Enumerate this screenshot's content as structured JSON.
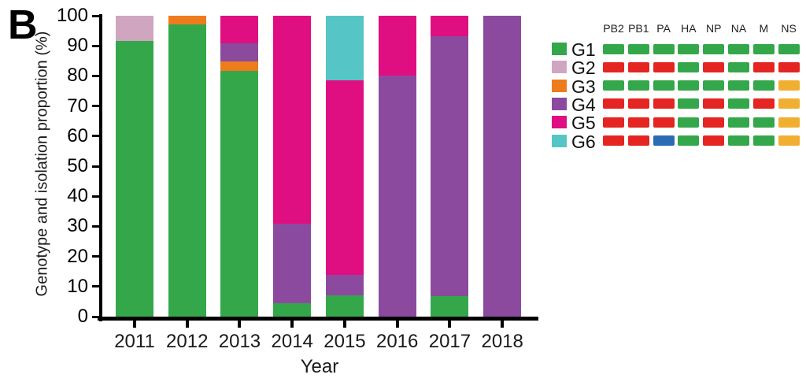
{
  "panel_label": "B",
  "colors": {
    "g1": "#34a74b",
    "g2": "#d0a5bf",
    "g3": "#ee7c1d",
    "g4": "#8b4a9e",
    "g5": "#df0e81",
    "g6": "#56c5c6",
    "gene_green": "#34a74b",
    "gene_red": "#e42521",
    "gene_blue": "#2a6cb3",
    "gene_amber": "#f1af32",
    "axis": "#000000"
  },
  "chart_data": {
    "type": "bar",
    "stacked": true,
    "title": "",
    "xlabel": "Year",
    "ylabel": "Genotype and isolation proportion (%)",
    "ylim": [
      0,
      100
    ],
    "yticks": [
      0,
      10,
      20,
      30,
      40,
      50,
      60,
      70,
      80,
      90,
      100
    ],
    "grid": false,
    "legend_position": "right",
    "categories": [
      "2011",
      "2012",
      "2013",
      "2014",
      "2015",
      "2016",
      "2017",
      "2018"
    ],
    "series": [
      {
        "name": "G1",
        "color": "#34a74b",
        "values": [
          91.7,
          97.0,
          81.8,
          4.5,
          7.0,
          0,
          6.7,
          0
        ]
      },
      {
        "name": "G2",
        "color": "#d0a5bf",
        "values": [
          8.3,
          0,
          0,
          0,
          0,
          0,
          0,
          0
        ]
      },
      {
        "name": "G3",
        "color": "#ee7c1d",
        "values": [
          0,
          3.0,
          3.0,
          0,
          0,
          0,
          0,
          0
        ]
      },
      {
        "name": "G4",
        "color": "#8b4a9e",
        "values": [
          0,
          0,
          6.1,
          26.5,
          7.0,
          80.0,
          86.6,
          100.0
        ]
      },
      {
        "name": "G5",
        "color": "#df0e81",
        "values": [
          0,
          0,
          9.1,
          69.0,
          64.5,
          20.0,
          6.7,
          0
        ]
      },
      {
        "name": "G6",
        "color": "#56c5c6",
        "values": [
          0,
          0,
          0,
          0,
          21.5,
          0,
          0,
          0
        ]
      }
    ]
  },
  "legend": {
    "gene_headers": [
      "PB2",
      "PB1",
      "PA",
      "HA",
      "NP",
      "NA",
      "M",
      "NS"
    ],
    "rows": [
      {
        "label": "G1",
        "swatch": "#34a74b",
        "genes": [
          "green",
          "green",
          "green",
          "green",
          "green",
          "green",
          "green",
          "green"
        ]
      },
      {
        "label": "G2",
        "swatch": "#d0a5bf",
        "genes": [
          "red",
          "red",
          "red",
          "green",
          "red",
          "green",
          "red",
          "red"
        ]
      },
      {
        "label": "G3",
        "swatch": "#ee7c1d",
        "genes": [
          "green",
          "green",
          "green",
          "green",
          "green",
          "green",
          "green",
          "amber"
        ]
      },
      {
        "label": "G4",
        "swatch": "#8b4a9e",
        "genes": [
          "red",
          "red",
          "red",
          "green",
          "red",
          "green",
          "red",
          "amber"
        ]
      },
      {
        "label": "G5",
        "swatch": "#df0e81",
        "genes": [
          "red",
          "red",
          "red",
          "green",
          "red",
          "green",
          "green",
          "amber"
        ]
      },
      {
        "label": "G6",
        "swatch": "#56c5c6",
        "genes": [
          "red",
          "red",
          "blue",
          "green",
          "red",
          "green",
          "green",
          "amber"
        ]
      }
    ]
  }
}
